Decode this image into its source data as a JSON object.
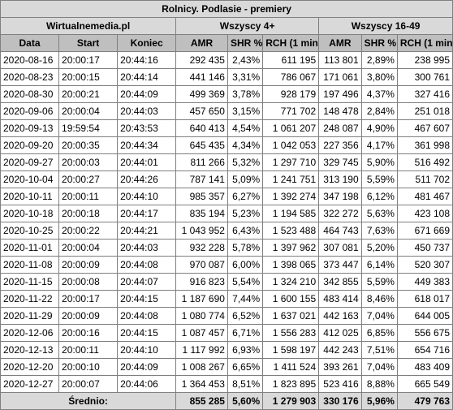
{
  "title": "Rolnicy. Podlasie - premiery",
  "source": "Wirtualnemedia.pl",
  "groups": [
    "Wszyscy 4+",
    "Wszyscy 16-49"
  ],
  "headers": [
    "Data",
    "Start",
    "Koniec",
    "AMR",
    "SHR %",
    "RCH (1 min)",
    "AMR",
    "SHR %",
    "RCH (1 min)"
  ],
  "rows": [
    [
      "2020-08-16",
      "20:00:17",
      "20:44:16",
      "292 435",
      "2,43%",
      "611 195",
      "113 801",
      "2,89%",
      "238 995"
    ],
    [
      "2020-08-23",
      "20:00:15",
      "20:44:14",
      "441 146",
      "3,31%",
      "786 067",
      "171 061",
      "3,80%",
      "300 761"
    ],
    [
      "2020-08-30",
      "20:00:21",
      "20:44:09",
      "499 369",
      "3,78%",
      "928 179",
      "197 496",
      "4,37%",
      "327 416"
    ],
    [
      "2020-09-06",
      "20:00:04",
      "20:44:03",
      "457 650",
      "3,15%",
      "771 702",
      "148 478",
      "2,84%",
      "251 018"
    ],
    [
      "2020-09-13",
      "19:59:54",
      "20:43:53",
      "640 413",
      "4,54%",
      "1 061 207",
      "248 087",
      "4,90%",
      "467 607"
    ],
    [
      "2020-09-20",
      "20:00:35",
      "20:44:34",
      "645 435",
      "4,34%",
      "1 042 053",
      "227 356",
      "4,17%",
      "361 998"
    ],
    [
      "2020-09-27",
      "20:00:03",
      "20:44:01",
      "811 266",
      "5,32%",
      "1 297 710",
      "329 745",
      "5,90%",
      "516 492"
    ],
    [
      "2020-10-04",
      "20:00:27",
      "20:44:26",
      "787 141",
      "5,09%",
      "1 241 751",
      "313 190",
      "5,59%",
      "511 702"
    ],
    [
      "2020-10-11",
      "20:00:11",
      "20:44:10",
      "985 357",
      "6,27%",
      "1 392 274",
      "347 198",
      "6,12%",
      "481 467"
    ],
    [
      "2020-10-18",
      "20:00:18",
      "20:44:17",
      "835 194",
      "5,23%",
      "1 194 585",
      "322 272",
      "5,63%",
      "423 108"
    ],
    [
      "2020-10-25",
      "20:00:22",
      "20:44:21",
      "1 043 952",
      "6,43%",
      "1 523 488",
      "464 743",
      "7,63%",
      "671 669"
    ],
    [
      "2020-11-01",
      "20:00:04",
      "20:44:03",
      "932 228",
      "5,78%",
      "1 397 962",
      "307 081",
      "5,20%",
      "450 737"
    ],
    [
      "2020-11-08",
      "20:00:09",
      "20:44:08",
      "970 087",
      "6,00%",
      "1 398 065",
      "373 447",
      "6,14%",
      "520 307"
    ],
    [
      "2020-11-15",
      "20:00:08",
      "20:44:07",
      "916 823",
      "5,54%",
      "1 324 210",
      "342 855",
      "5,59%",
      "449 383"
    ],
    [
      "2020-11-22",
      "20:00:17",
      "20:44:15",
      "1 187 690",
      "7,44%",
      "1 600 155",
      "483 414",
      "8,46%",
      "618 017"
    ],
    [
      "2020-11-29",
      "20:00:09",
      "20:44:08",
      "1 080 774",
      "6,52%",
      "1 637 021",
      "442 163",
      "7,04%",
      "644 005"
    ],
    [
      "2020-12-06",
      "20:00:16",
      "20:44:15",
      "1 087 457",
      "6,71%",
      "1 556 283",
      "412 025",
      "6,85%",
      "556 675"
    ],
    [
      "2020-12-13",
      "20:00:11",
      "20:44:10",
      "1 117 992",
      "6,93%",
      "1 598 197",
      "442 243",
      "7,51%",
      "654 716"
    ],
    [
      "2020-12-20",
      "20:00:10",
      "20:44:09",
      "1 008 267",
      "6,65%",
      "1 411 524",
      "393 261",
      "7,04%",
      "483 409"
    ],
    [
      "2020-12-27",
      "20:00:07",
      "20:44:06",
      "1 364 453",
      "8,51%",
      "1 823 895",
      "523 416",
      "8,88%",
      "665 549"
    ]
  ],
  "summary": {
    "label": "Średnio:",
    "values": [
      "855 285",
      "5,60%",
      "1 279 903",
      "330 176",
      "5,96%",
      "479 763"
    ]
  },
  "colors": {
    "header_bg": "#bfbfbf",
    "title_bg": "#d9d9d9",
    "border": "#7f7f7f"
  }
}
